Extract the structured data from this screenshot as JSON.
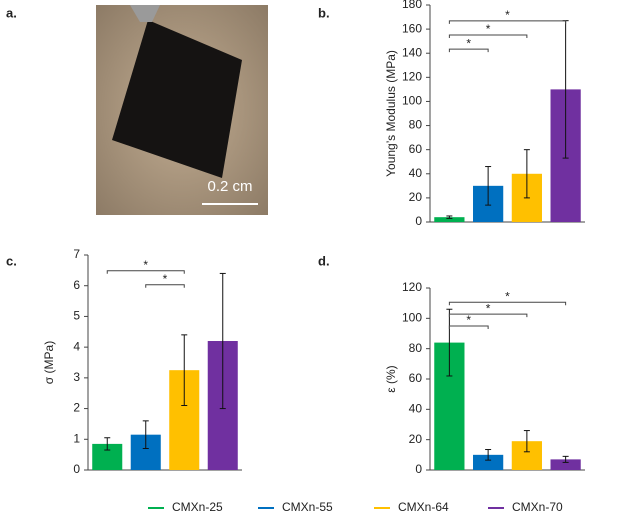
{
  "photo": {
    "label": "a.",
    "scale_bar": "0.2 cm"
  },
  "legend": {
    "position": "bottom",
    "entries": [
      {
        "name": "CMXn-25",
        "color": "#00b050"
      },
      {
        "name": "CMXn-55",
        "color": "#0070c0"
      },
      {
        "name": "CMXn-64",
        "color": "#ffc000"
      },
      {
        "name": "CMXn-70",
        "color": "#7030a0"
      }
    ]
  },
  "chart_data": [
    {
      "type": "bar",
      "panel_label": "b.",
      "y_label": "Young’s Modulus (MPa)",
      "categories": [
        null,
        null,
        null,
        null
      ],
      "colors": [
        "#00b050",
        "#0070c0",
        "#ffc000",
        "#7030a0"
      ],
      "values": [
        4,
        30,
        40,
        110
      ],
      "errors": [
        1,
        16,
        20,
        57
      ],
      "ylim": [
        0,
        180
      ],
      "yticks": [
        0,
        20,
        40,
        60,
        80,
        100,
        120,
        140,
        160,
        180
      ],
      "significance": [
        {
          "from": 0,
          "to": 1,
          "label": "*"
        },
        {
          "from": 0,
          "to": 2,
          "label": "*"
        },
        {
          "from": 0,
          "to": 3,
          "label": "*"
        }
      ]
    },
    {
      "type": "bar",
      "panel_label": "c.",
      "y_label": "σ (MPa)",
      "categories": [
        null,
        null,
        null,
        null
      ],
      "colors": [
        "#00b050",
        "#0070c0",
        "#ffc000",
        "#7030a0"
      ],
      "values": [
        0.85,
        1.15,
        3.25,
        4.2
      ],
      "errors": [
        0.2,
        0.45,
        1.15,
        2.2
      ],
      "ylim": [
        0,
        7
      ],
      "yticks": [
        0,
        1,
        2,
        3,
        4,
        5,
        6,
        7
      ],
      "significance": [
        {
          "from": 1,
          "to": 2,
          "label": "*"
        },
        {
          "from": 0,
          "to": 2,
          "label": "*"
        }
      ]
    },
    {
      "type": "bar",
      "panel_label": "d.",
      "y_label": "ε (%)",
      "categories": [
        null,
        null,
        null,
        null
      ],
      "colors": [
        "#00b050",
        "#0070c0",
        "#ffc000",
        "#7030a0"
      ],
      "values": [
        84,
        10,
        19,
        7
      ],
      "errors": [
        22,
        3.5,
        7,
        2
      ],
      "ylim": [
        0,
        120
      ],
      "yticks": [
        0,
        20,
        40,
        60,
        80,
        100,
        120
      ],
      "significance": [
        {
          "from": 0,
          "to": 1,
          "label": "*"
        },
        {
          "from": 0,
          "to": 2,
          "label": "*"
        },
        {
          "from": 0,
          "to": 3,
          "label": "*"
        }
      ]
    }
  ]
}
